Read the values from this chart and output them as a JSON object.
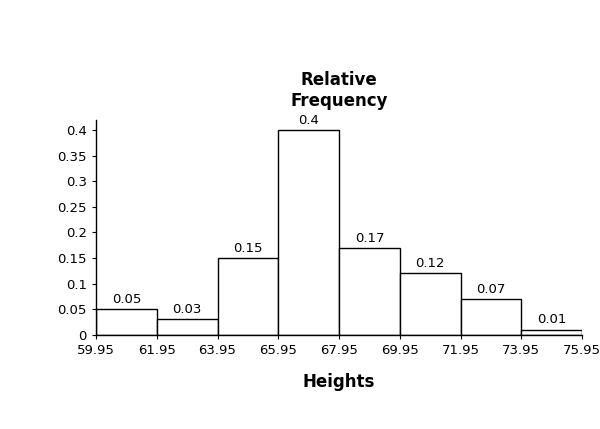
{
  "bar_lefts": [
    59.95,
    61.95,
    63.95,
    65.95,
    67.95,
    69.95,
    71.95,
    73.95
  ],
  "bar_heights": [
    0.05,
    0.03,
    0.15,
    0.4,
    0.17,
    0.12,
    0.07,
    0.01
  ],
  "bar_width": 2.0,
  "bar_color": "#ffffff",
  "bar_edgecolor": "#000000",
  "bar_linewidth": 1.0,
  "xlim": [
    59.95,
    75.95
  ],
  "ylim": [
    0,
    0.42
  ],
  "yticks": [
    0,
    0.05,
    0.1,
    0.15,
    0.2,
    0.25,
    0.3,
    0.35,
    0.4
  ],
  "xticks": [
    59.95,
    61.95,
    63.95,
    65.95,
    67.95,
    69.95,
    71.95,
    73.95,
    75.95
  ],
  "xtick_labels": [
    "59.95",
    "61.95",
    "63.95",
    "65.95",
    "67.95",
    "69.95",
    "71.95",
    "73.95",
    "75.95"
  ],
  "ytick_labels": [
    "0",
    "0.05",
    "0.1",
    "0.15",
    "0.2",
    "0.25",
    "0.3",
    "0.35",
    "0.4"
  ],
  "title_line1": "Relative",
  "title_line2": "Frequency",
  "xlabel": "Heights",
  "bar_labels": [
    "0.05",
    "0.03",
    "0.15",
    "0.4",
    "0.17",
    "0.12",
    "0.07",
    "0.01"
  ],
  "background_color": "#ffffff",
  "title_fontsize": 12,
  "label_fontsize": 12,
  "tick_fontsize": 9.5,
  "bar_label_fontsize": 9.5
}
